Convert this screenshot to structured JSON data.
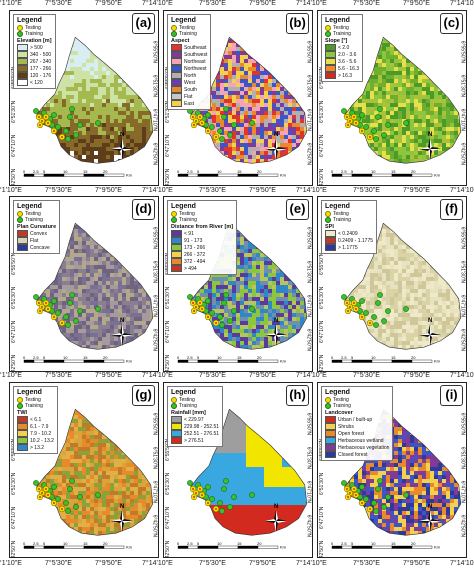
{
  "longitude_ticks": [
    "7°1'10\"E",
    "7°5'30\"E",
    "7°9'50\"E",
    "7°14'10\"E"
  ],
  "latitude_ticks": [
    "6°55'50\"N",
    "6°51'30\"N",
    "6°47'10\"N",
    "6°42'50\"N"
  ],
  "scale": {
    "ticks": [
      "0",
      "2.5",
      "5",
      "10",
      "15",
      "20"
    ],
    "unit": "Km"
  },
  "north_label": "N",
  "points": {
    "testing": "Testing",
    "training": "Training"
  },
  "panels": [
    {
      "id": "a",
      "label": "(a)",
      "legend_title": "Legend",
      "legend_subtitle": "Elevation [m]",
      "classes": [
        {
          "label": "> 500",
          "color": "#d8eef3"
        },
        {
          "label": "340 - 500",
          "color": "#cde3a6"
        },
        {
          "label": "267 - 340",
          "color": "#a6b94f"
        },
        {
          "label": "177 - 266",
          "color": "#876a2a"
        },
        {
          "label": "120 - 176",
          "color": "#5e3e1a"
        },
        {
          "label": "< 120",
          "color": "#ffffff"
        }
      ],
      "palette": [
        "#d8eef3",
        "#cde3a6",
        "#a6b94f",
        "#876a2a",
        "#5e3e1a",
        "#ffffff"
      ]
    },
    {
      "id": "b",
      "label": "(b)",
      "legend_title": "Legend",
      "legend_subtitle": "Aspect",
      "classes": [
        {
          "label": "Southeast",
          "color": "#e2342b"
        },
        {
          "label": "Southwest",
          "color": "#7f3a9a"
        },
        {
          "label": "Northeast",
          "color": "#f7a3b6"
        },
        {
          "label": "Northwest",
          "color": "#3a56c8"
        },
        {
          "label": "North",
          "color": "#b0b0b0"
        },
        {
          "label": "West",
          "color": "#6a3cb0"
        },
        {
          "label": "South",
          "color": "#e88a2a"
        },
        {
          "label": "Flat",
          "color": "#c6c6c6"
        },
        {
          "label": "East",
          "color": "#f2d14c"
        }
      ],
      "palette": [
        "#e2342b",
        "#7f3a9a",
        "#f7a3b6",
        "#3a56c8",
        "#b0b0b0",
        "#e88a2a",
        "#f2d14c"
      ]
    },
    {
      "id": "c",
      "label": "(c)",
      "legend_title": "Legend",
      "legend_subtitle": "Slope [°]",
      "classes": [
        {
          "label": "< 2.0",
          "color": "#4c9a2a"
        },
        {
          "label": "2.0 - 3.6",
          "color": "#8cc63f"
        },
        {
          "label": "3.6 - 5.6",
          "color": "#e8e04a"
        },
        {
          "label": "5.6 - 16.3",
          "color": "#f08a2a"
        },
        {
          "label": "> 16.3",
          "color": "#d22a1e"
        }
      ],
      "palette": [
        "#4c9a2a",
        "#8cc63f",
        "#a8c23a",
        "#e8e04a",
        "#6fae2f"
      ]
    },
    {
      "id": "d",
      "label": "(d)",
      "legend_title": "Legend",
      "legend_subtitle": "Plan Curvature",
      "classes": [
        {
          "label": "Convex",
          "color": "#c0392b"
        },
        {
          "label": "Flat",
          "color": "#d9d3b0"
        },
        {
          "label": "Concave",
          "color": "#2d3a9a"
        }
      ],
      "palette": [
        "#8a7f8e",
        "#a79a9a",
        "#6f6480",
        "#b4a88c",
        "#7a7096"
      ]
    },
    {
      "id": "e",
      "label": "(e)",
      "legend_title": "Legend",
      "legend_subtitle": "Distance from River [m]",
      "classes": [
        {
          "label": "< 91",
          "color": "#5b3aa0"
        },
        {
          "label": "91 - 173",
          "color": "#2f86c8"
        },
        {
          "label": "173 - 266",
          "color": "#8cc63f"
        },
        {
          "label": "266 - 372",
          "color": "#f2d14c"
        },
        {
          "label": "372 - 494",
          "color": "#e88a2a"
        },
        {
          "label": "> 494",
          "color": "#c0392b"
        }
      ],
      "palette": [
        "#5b3aa0",
        "#2f86c8",
        "#8cc63f",
        "#b9c45a",
        "#6e8fae"
      ]
    },
    {
      "id": "f",
      "label": "(f)",
      "legend_title": "Legend",
      "legend_subtitle": "SPI",
      "classes": [
        {
          "label": "< 0.2409",
          "color": "#eeeac8"
        },
        {
          "label": "0.2409 - 1.1775",
          "color": "#c0392b"
        },
        {
          "label": "> 1.1775",
          "color": "#2d3a9a"
        }
      ],
      "palette": [
        "#e7e2bf",
        "#d9d3a6",
        "#efe9c8",
        "#cfc79a"
      ]
    },
    {
      "id": "g",
      "label": "(g)",
      "legend_title": "Legend",
      "legend_subtitle": "TWI",
      "classes": [
        {
          "label": "< 6.1",
          "color": "#c0392b"
        },
        {
          "label": "6.1 - 7.9",
          "color": "#e88a2a"
        },
        {
          "label": "7.9 - 10.2",
          "color": "#f2d14c"
        },
        {
          "label": "10.2 - 13.2",
          "color": "#8cc63f"
        },
        {
          "label": "> 13.2",
          "color": "#2f86c8"
        }
      ],
      "palette": [
        "#e88a2a",
        "#d9a53a",
        "#c07a2a",
        "#8aa23a",
        "#e0b046"
      ]
    },
    {
      "id": "h",
      "label": "(h)",
      "legend_title": "Legend",
      "legend_subtitle": "Rainfall [mm]",
      "classes": [
        {
          "label": "< 229.97",
          "color": "#9e9e9e"
        },
        {
          "label": "229.98 - 252.51",
          "color": "#f2e600"
        },
        {
          "label": "252.51 - 276.51",
          "color": "#3aa8e0"
        },
        {
          "label": "> 276.51",
          "color": "#d22a1e"
        }
      ],
      "palette": [
        "#9e9e9e",
        "#f2e600",
        "#3aa8e0",
        "#d22a1e"
      ]
    },
    {
      "id": "i",
      "label": "(i)",
      "legend_title": "Legend",
      "legend_subtitle": "Landcover",
      "classes": [
        {
          "label": "Urban / built-up",
          "color": "#d22a1e"
        },
        {
          "label": "Shrubs",
          "color": "#f2d14c"
        },
        {
          "label": "Open forest",
          "color": "#e88a2a"
        },
        {
          "label": "Herbaceous wetland",
          "color": "#3aa8e0"
        },
        {
          "label": "Herbaceous vegetation",
          "color": "#7f3a9a"
        },
        {
          "label": "Closed forest",
          "color": "#2d3a9a"
        }
      ],
      "palette": [
        "#2d3a9a",
        "#e88a2a",
        "#7f3a9a",
        "#f2d14c",
        "#3a56c8"
      ]
    }
  ]
}
